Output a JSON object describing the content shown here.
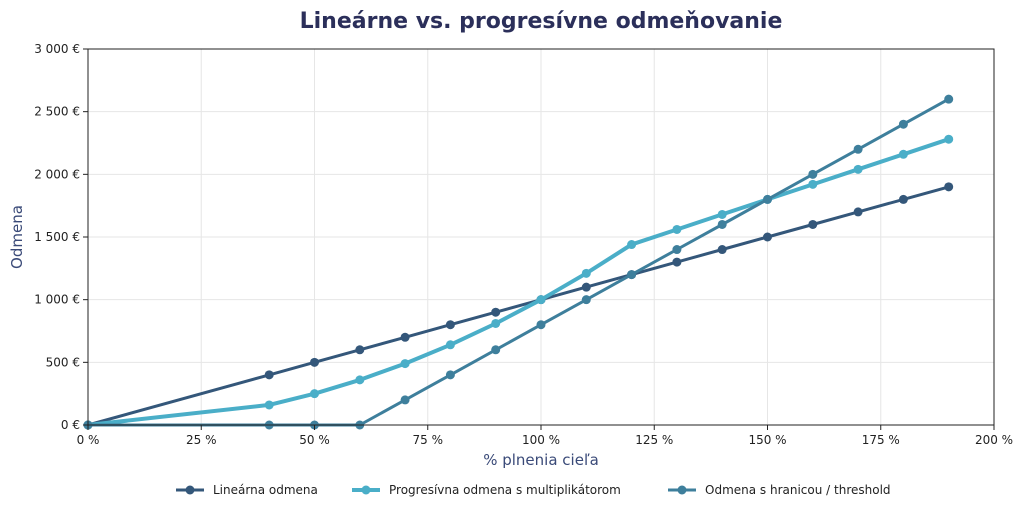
{
  "chart_data": {
    "type": "line",
    "title": "Lineárne vs. progresívne odmeňovanie",
    "xlabel": "% plnenia cieľa",
    "ylabel": "Odmena",
    "xlim": [
      0,
      200
    ],
    "ylim": [
      0,
      3000
    ],
    "x_ticks": [
      0,
      25,
      50,
      75,
      100,
      125,
      150,
      175,
      200
    ],
    "x_tick_labels": [
      "0 %",
      "25 %",
      "50 %",
      "75 %",
      "100 %",
      "125 %",
      "150 %",
      "175 %",
      "200 %"
    ],
    "y_ticks": [
      0,
      500,
      1000,
      1500,
      2000,
      2500,
      3000
    ],
    "y_tick_labels": [
      "0 €",
      "500 €",
      "1 000 €",
      "1 500 €",
      "2 000 €",
      "2 500 €",
      "3 000 €"
    ],
    "grid": true,
    "legend_position": "bottom",
    "x": [
      0,
      40,
      50,
      60,
      70,
      80,
      90,
      100,
      110,
      120,
      130,
      140,
      150,
      160,
      170,
      180,
      190
    ],
    "series": [
      {
        "name": "Lineárna odmena",
        "color": "#34577a",
        "values": [
          0,
          400,
          500,
          600,
          700,
          800,
          900,
          1000,
          1100,
          1200,
          1300,
          1400,
          1500,
          1600,
          1700,
          1800,
          1900
        ]
      },
      {
        "name": "Progresívna odmena s multiplikátorom",
        "color": "#4aaec8",
        "values": [
          0,
          160,
          250,
          360,
          490,
          640,
          810,
          1000,
          1210,
          1440,
          1560,
          1680,
          1800,
          1920,
          2040,
          2160,
          2280
        ]
      },
      {
        "name": "Odmena s hranicou / threshold",
        "color": "#3e7f9c",
        "values": [
          0,
          0,
          0,
          0,
          200,
          400,
          600,
          800,
          1000,
          1200,
          1400,
          1600,
          1800,
          2000,
          2200,
          2400,
          2600
        ]
      }
    ]
  }
}
